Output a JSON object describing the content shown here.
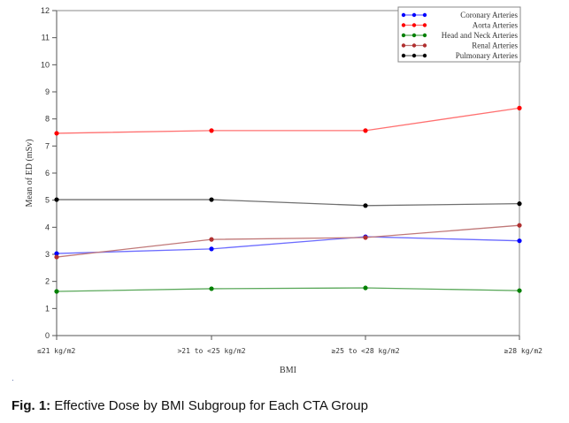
{
  "chart_data": {
    "type": "line",
    "title": "",
    "xlabel": "BMI",
    "ylabel": "Mean of ED (mSv)",
    "categories": [
      "≤21 kg/m2",
      ">21 to <25 kg/m2",
      "≥25 to <28 kg/m2",
      "≥28 kg/m2"
    ],
    "ylim": [
      0,
      12
    ],
    "yticks": [
      0,
      1,
      2,
      3,
      4,
      5,
      6,
      7,
      8,
      9,
      10,
      11,
      12
    ],
    "grid": false,
    "legend_position": "top-right",
    "series": [
      {
        "name": "Coronary Arteries",
        "color": "#0000ff",
        "line_color": "#6b6bff",
        "values": [
          3.03,
          3.2,
          3.65,
          3.5
        ]
      },
      {
        "name": "Aorta Arteries",
        "color": "#ff0000",
        "line_color": "#ff7070",
        "values": [
          7.47,
          7.57,
          7.57,
          8.4
        ]
      },
      {
        "name": "Head and Neck Arteries",
        "color": "#008000",
        "line_color": "#5aa85a",
        "values": [
          1.63,
          1.73,
          1.76,
          1.66
        ]
      },
      {
        "name": "Renal Arteries",
        "color": "#b03030",
        "line_color": "#c07878",
        "values": [
          2.9,
          3.55,
          3.62,
          4.07
        ]
      },
      {
        "name": "Pulmonary Arteries",
        "color": "#000000",
        "line_color": "#707070",
        "values": [
          5.02,
          5.02,
          4.8,
          4.87
        ]
      }
    ]
  },
  "caption": {
    "label": "Fig. 1:",
    "text": " Effective Dose by BMI Subgroup for Each CTA Group"
  }
}
